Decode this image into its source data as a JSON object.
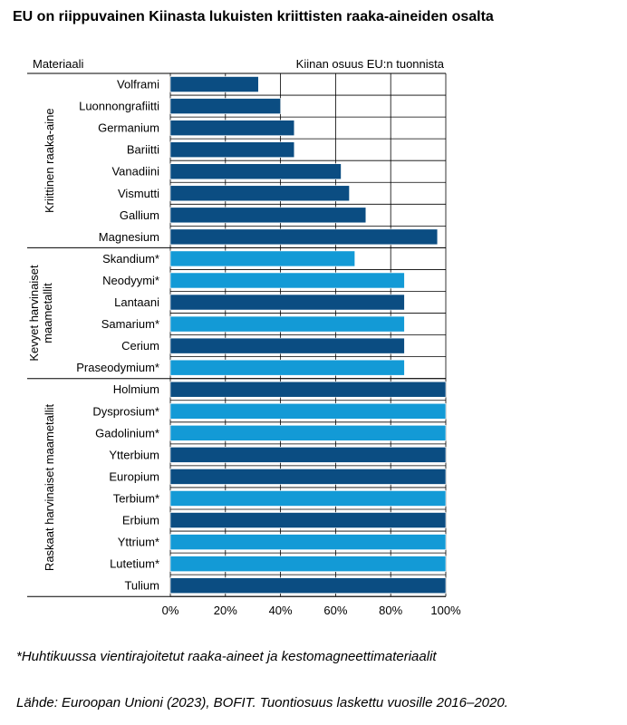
{
  "title": "EU on riippuvainen Kiinasta lukuisten kriittisten raaka-aineiden osalta",
  "footnote": "*Huhtikuussa vientirajoitetut raaka-aineet ja kestomagneettimateriaalit",
  "source": "Lähde: Euroopan Unioni (2023), BOFIT. Tuontiosuus laskettu vuosille 2016–2020.",
  "colors": {
    "dark": "#0b4d82",
    "light": "#139ad6",
    "grid": "#000000"
  },
  "chart_data": {
    "type": "bar",
    "orientation": "horizontal",
    "column_header_left": "Materiaali",
    "column_header_right": "Kiinan osuus EU:n tuonnista",
    "xlim": [
      0,
      100
    ],
    "x_ticks": [
      "0%",
      "20%",
      "40%",
      "60%",
      "80%",
      "100%"
    ],
    "grid": true,
    "groups": [
      {
        "label": "Kriittinen raaka-aine",
        "start": 0,
        "end": 7
      },
      {
        "label_lines": [
          "Kevyet harvinaiset",
          "maametallit"
        ],
        "start": 8,
        "end": 13
      },
      {
        "label": "Raskaat harvinaiset maametallit",
        "start": 14,
        "end": 23
      }
    ],
    "categories": [
      "Volframi",
      "Luonnongrafiitti",
      "Germanium",
      "Bariitti",
      "Vanadiini",
      "Vismutti",
      "Gallium",
      "Magnesium",
      "Skandium*",
      "Neodyymi*",
      "Lantaani",
      "Samarium*",
      "Cerium",
      "Praseodymium*",
      "Holmium",
      "Dysprosium*",
      "Gadolinium*",
      "Ytterbium",
      "Europium",
      "Terbium*",
      "Erbium",
      "Yttrium*",
      "Lutetium*",
      "Tulium"
    ],
    "values": [
      32,
      40,
      45,
      45,
      62,
      65,
      71,
      97,
      67,
      85,
      85,
      85,
      85,
      85,
      100,
      100,
      100,
      100,
      100,
      100,
      100,
      100,
      100,
      100
    ],
    "export_restricted": [
      false,
      false,
      false,
      false,
      false,
      false,
      false,
      false,
      true,
      true,
      false,
      true,
      false,
      true,
      false,
      true,
      true,
      false,
      false,
      true,
      false,
      true,
      true,
      false
    ]
  }
}
